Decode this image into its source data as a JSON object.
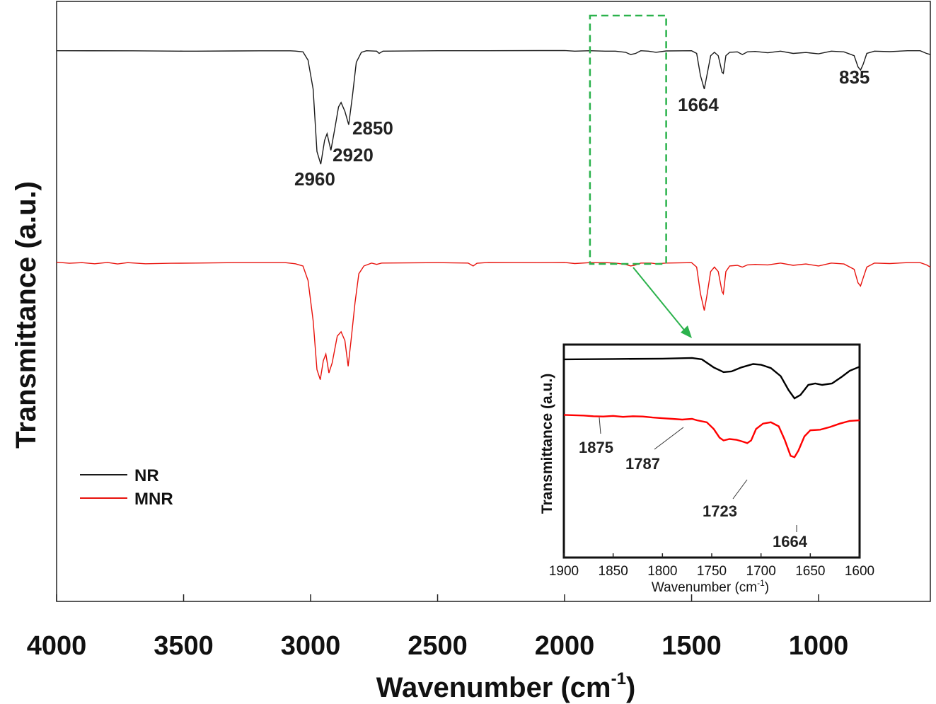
{
  "chart_data": [
    {
      "type": "line",
      "xlabel_main": "Wavenumber (cm",
      "xlabel_sup": "-1",
      "xlabel_end": ")",
      "ylabel": "Transmittance (a.u.)",
      "xlim": [
        4000,
        560
      ],
      "x_reversed": true,
      "xticks": [
        4000,
        3500,
        3000,
        2500,
        2000,
        1500,
        1000
      ],
      "grid": false,
      "legend_position": "lower-left",
      "series": [
        {
          "name": "NR",
          "color": "#1a1a1a",
          "points": [
            [
              4000,
              0.88
            ],
            [
              3700,
              0.882
            ],
            [
              3500,
              0.898
            ],
            [
              3450,
              0.899
            ],
            [
              3300,
              0.89
            ],
            [
              3200,
              0.882
            ],
            [
              3080,
              0.882
            ],
            [
              3060,
              0.895
            ],
            [
              3030,
              0.93
            ],
            [
              3010,
              1.3
            ],
            [
              2990,
              2.6
            ],
            [
              2975,
              5.4
            ],
            [
              2960,
              5.97
            ],
            [
              2945,
              4.9
            ],
            [
              2935,
              4.6
            ],
            [
              2920,
              5.35
            ],
            [
              2905,
              4.4
            ],
            [
              2890,
              3.4
            ],
            [
              2880,
              3.2
            ],
            [
              2865,
              3.6
            ],
            [
              2850,
              4.2
            ],
            [
              2835,
              2.9
            ],
            [
              2820,
              1.4
            ],
            [
              2800,
              0.95
            ],
            [
              2780,
              0.88
            ],
            [
              2740,
              0.9
            ],
            [
              2730,
              1.0
            ],
            [
              2715,
              0.9
            ],
            [
              2500,
              0.88
            ],
            [
              2300,
              0.88
            ],
            [
              2000,
              0.87
            ],
            [
              1960,
              0.9
            ],
            [
              1900,
              0.88
            ],
            [
              1840,
              0.9
            ],
            [
              1800,
              0.9
            ],
            [
              1760,
              0.95
            ],
            [
              1740,
              1.05
            ],
            [
              1720,
              1.0
            ],
            [
              1700,
              0.88
            ],
            [
              1670,
              0.9
            ],
            [
              1640,
              0.95
            ],
            [
              1620,
              0.92
            ],
            [
              1600,
              0.89
            ],
            [
              1500,
              0.88
            ],
            [
              1480,
              1.0
            ],
            [
              1465,
              2.0
            ],
            [
              1450,
              2.6
            ],
            [
              1440,
              2.0
            ],
            [
              1425,
              1.1
            ],
            [
              1410,
              0.95
            ],
            [
              1395,
              1.1
            ],
            [
              1380,
              1.85
            ],
            [
              1375,
              1.9
            ],
            [
              1365,
              1.1
            ],
            [
              1350,
              0.95
            ],
            [
              1320,
              0.93
            ],
            [
              1300,
              1.05
            ],
            [
              1280,
              0.93
            ],
            [
              1250,
              0.91
            ],
            [
              1200,
              0.97
            ],
            [
              1150,
              0.9
            ],
            [
              1100,
              1.0
            ],
            [
              1050,
              0.96
            ],
            [
              1000,
              1.02
            ],
            [
              950,
              0.9
            ],
            [
              900,
              0.93
            ],
            [
              860,
              1.1
            ],
            [
              845,
              1.6
            ],
            [
              835,
              1.75
            ],
            [
              825,
              1.5
            ],
            [
              810,
              1.0
            ],
            [
              780,
              0.9
            ],
            [
              720,
              0.92
            ],
            [
              650,
              0.88
            ],
            [
              600,
              0.88
            ],
            [
              575,
              1.0
            ],
            [
              560,
              1.05
            ]
          ]
        },
        {
          "name": "MNR",
          "color": "#e8120c",
          "points": [
            [
              4000,
              0.78
            ],
            [
              3950,
              0.83
            ],
            [
              3900,
              0.8
            ],
            [
              3850,
              0.85
            ],
            [
              3800,
              0.79
            ],
            [
              3760,
              0.86
            ],
            [
              3720,
              0.8
            ],
            [
              3650,
              0.85
            ],
            [
              3550,
              0.83
            ],
            [
              3450,
              0.82
            ],
            [
              3300,
              0.8
            ],
            [
              3100,
              0.8
            ],
            [
              3060,
              0.85
            ],
            [
              3030,
              0.95
            ],
            [
              3010,
              1.6
            ],
            [
              2990,
              3.4
            ],
            [
              2975,
              5.6
            ],
            [
              2962,
              6.05
            ],
            [
              2950,
              5.2
            ],
            [
              2940,
              4.9
            ],
            [
              2928,
              5.75
            ],
            [
              2915,
              5.3
            ],
            [
              2895,
              4.1
            ],
            [
              2880,
              3.9
            ],
            [
              2865,
              4.3
            ],
            [
              2852,
              5.45
            ],
            [
              2840,
              4.2
            ],
            [
              2825,
              2.6
            ],
            [
              2810,
              1.3
            ],
            [
              2790,
              0.95
            ],
            [
              2760,
              0.82
            ],
            [
              2740,
              0.88
            ],
            [
              2720,
              0.82
            ],
            [
              2500,
              0.8
            ],
            [
              2380,
              0.82
            ],
            [
              2360,
              0.95
            ],
            [
              2345,
              0.83
            ],
            [
              2300,
              0.79
            ],
            [
              2100,
              0.8
            ],
            [
              2000,
              0.79
            ],
            [
              1960,
              0.84
            ],
            [
              1900,
              0.8
            ],
            [
              1840,
              0.8
            ],
            [
              1800,
              0.82
            ],
            [
              1760,
              0.88
            ],
            [
              1740,
              0.95
            ],
            [
              1725,
              0.92
            ],
            [
              1700,
              0.82
            ],
            [
              1660,
              0.82
            ],
            [
              1640,
              0.85
            ],
            [
              1600,
              0.82
            ],
            [
              1500,
              0.8
            ],
            [
              1480,
              1.0
            ],
            [
              1465,
              2.2
            ],
            [
              1450,
              2.95
            ],
            [
              1440,
              2.3
            ],
            [
              1425,
              1.2
            ],
            [
              1410,
              1.0
            ],
            [
              1395,
              1.2
            ],
            [
              1380,
              2.1
            ],
            [
              1375,
              2.2
            ],
            [
              1365,
              1.2
            ],
            [
              1350,
              0.95
            ],
            [
              1320,
              0.92
            ],
            [
              1300,
              1.0
            ],
            [
              1280,
              0.9
            ],
            [
              1250,
              0.88
            ],
            [
              1200,
              0.9
            ],
            [
              1150,
              0.82
            ],
            [
              1100,
              0.92
            ],
            [
              1050,
              0.86
            ],
            [
              1000,
              0.95
            ],
            [
              950,
              0.82
            ],
            [
              900,
              0.86
            ],
            [
              860,
              1.1
            ],
            [
              845,
              1.7
            ],
            [
              835,
              1.85
            ],
            [
              825,
              1.5
            ],
            [
              810,
              1.0
            ],
            [
              780,
              0.82
            ],
            [
              720,
              0.84
            ],
            [
              650,
              0.8
            ],
            [
              600,
              0.8
            ],
            [
              575,
              0.9
            ],
            [
              560,
              1.0
            ]
          ]
        }
      ],
      "annotations": [
        "2960",
        "2920",
        "2850",
        "1664",
        "835"
      ],
      "highlight_box": {
        "x_from": 1900,
        "x_to": 1600,
        "color": "#2bb24c",
        "style": "dashed"
      }
    },
    {
      "type": "line",
      "role": "inset",
      "xlabel_main": "Wavenumber (cm",
      "xlabel_sup": "-1",
      "xlabel_end": ")",
      "ylabel": "Transmittance (a.u.)",
      "xlim": [
        1900,
        1600
      ],
      "x_reversed": true,
      "xticks": [
        1900,
        1850,
        1800,
        1750,
        1700,
        1650,
        1600
      ],
      "grid": false,
      "series": [
        {
          "name": "NR",
          "color": "#000000",
          "points": [
            [
              1900,
              0.3
            ],
            [
              1850,
              0.25
            ],
            [
              1800,
              0.2
            ],
            [
              1770,
              0.1
            ],
            [
              1760,
              0.3
            ],
            [
              1748,
              1.5
            ],
            [
              1738,
              2.2
            ],
            [
              1730,
              2.1
            ],
            [
              1720,
              1.5
            ],
            [
              1708,
              1.0
            ],
            [
              1700,
              1.1
            ],
            [
              1690,
              1.6
            ],
            [
              1680,
              2.8
            ],
            [
              1672,
              4.9
            ],
            [
              1666,
              6.1
            ],
            [
              1660,
              5.6
            ],
            [
              1652,
              4.1
            ],
            [
              1645,
              3.9
            ],
            [
              1638,
              4.1
            ],
            [
              1628,
              3.9
            ],
            [
              1618,
              2.9
            ],
            [
              1610,
              2.0
            ],
            [
              1600,
              1.4
            ]
          ]
        },
        {
          "name": "MNR",
          "color": "#ff0000",
          "points": [
            [
              1900,
              3.3
            ],
            [
              1880,
              3.4
            ],
            [
              1870,
              3.5
            ],
            [
              1860,
              3.55
            ],
            [
              1850,
              3.45
            ],
            [
              1840,
              3.6
            ],
            [
              1830,
              3.5
            ],
            [
              1820,
              3.55
            ],
            [
              1810,
              3.7
            ],
            [
              1800,
              3.8
            ],
            [
              1790,
              3.9
            ],
            [
              1780,
              4.0
            ],
            [
              1770,
              3.9
            ],
            [
              1765,
              4.1
            ],
            [
              1755,
              4.4
            ],
            [
              1748,
              5.4
            ],
            [
              1742,
              6.7
            ],
            [
              1738,
              7.1
            ],
            [
              1732,
              6.9
            ],
            [
              1725,
              7.0
            ],
            [
              1718,
              7.3
            ],
            [
              1714,
              7.5
            ],
            [
              1710,
              7.1
            ],
            [
              1705,
              5.4
            ],
            [
              1698,
              4.6
            ],
            [
              1690,
              4.4
            ],
            [
              1682,
              5.0
            ],
            [
              1676,
              7.0
            ],
            [
              1670,
              9.4
            ],
            [
              1666,
              9.6
            ],
            [
              1662,
              8.6
            ],
            [
              1656,
              6.5
            ],
            [
              1650,
              5.6
            ],
            [
              1640,
              5.5
            ],
            [
              1630,
              5.1
            ],
            [
              1620,
              4.6
            ],
            [
              1610,
              4.2
            ],
            [
              1600,
              4.1
            ]
          ]
        }
      ],
      "annotations": [
        "1875",
        "1787",
        "1723",
        "1664"
      ]
    }
  ]
}
